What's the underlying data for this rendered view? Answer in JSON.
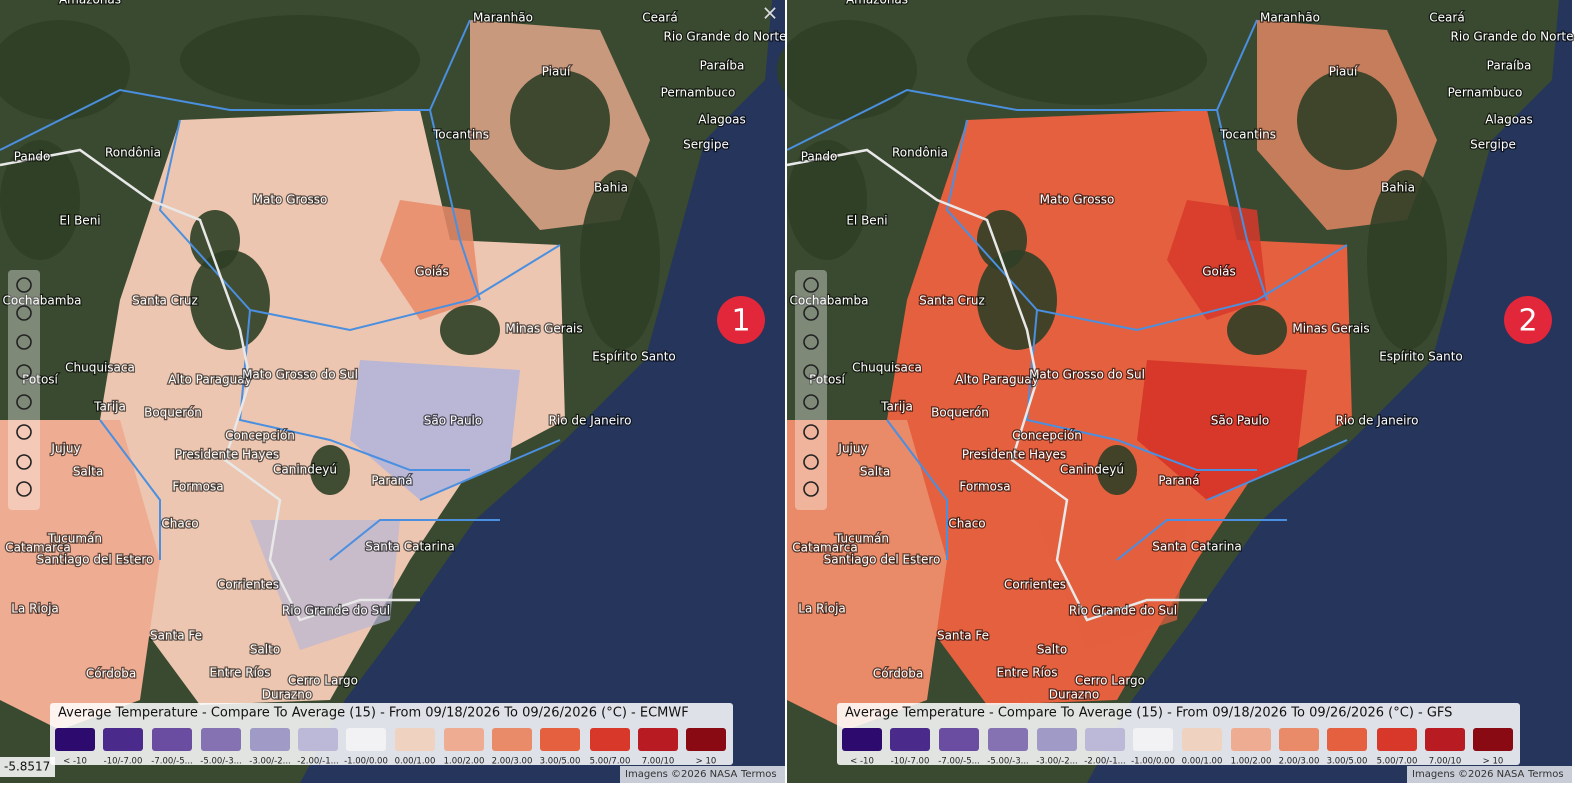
{
  "panels": [
    {
      "badge": "1",
      "legend_title": "Average Temperature - Compare To Average (15) - From 09/18/2026 To 09/26/2026 (°C) - ECMWF",
      "attribution": "Imagens ©2026 NASA",
      "terms": "Termos"
    },
    {
      "badge": "2",
      "legend_title": "Average Temperature - Compare To Average (15) - From 09/18/2026 To 09/26/2026 (°C) - GFS",
      "attribution": "Imagens ©2026 NASA",
      "terms": "Termos"
    }
  ],
  "legend_items": [
    {
      "label": "< -10",
      "color": "#2c0a6e"
    },
    {
      "label": "-10/-7.00",
      "color": "#4a2a8a"
    },
    {
      "label": "-7.00/-5...",
      "color": "#6a4ca0"
    },
    {
      "label": "-5.00/-3...",
      "color": "#8472b2"
    },
    {
      "label": "-3.00/-2...",
      "color": "#a09ac6"
    },
    {
      "label": "-2.00/-1...",
      "color": "#bbb8d8"
    },
    {
      "label": "-1.00/0.00",
      "color": "#f2f2f4"
    },
    {
      "label": "0.00/1.00",
      "color": "#f0d2c0"
    },
    {
      "label": "1.00/2.00",
      "color": "#eeac92"
    },
    {
      "label": "2.00/3.00",
      "color": "#e98a68"
    },
    {
      "label": "3.00/5.00",
      "color": "#e4603f"
    },
    {
      "label": "5.00/7.00",
      "color": "#d8382a"
    },
    {
      "label": "7.00/10",
      "color": "#b81c22"
    },
    {
      "label": "> 10",
      "color": "#8a0a14"
    }
  ],
  "places": [
    "Amazonas",
    "Maranhão",
    "Ceará",
    "Rio Grande do Norte",
    "Piauí",
    "Paraíba",
    "Pernambuco",
    "Alagoas",
    "Tocantins",
    "Rondônia",
    "Pando",
    "Sergipe",
    "Bahia",
    "Mato Grosso",
    "El Beni",
    "Goiás",
    "Cochabamba",
    "Santa Cruz",
    "Minas Gerais",
    "Espírito Santo",
    "Chuquisaca",
    "Alto Paraguay",
    "Mato Grosso do Sul",
    "Potosí",
    "Tarija",
    "Boquerón",
    "São Paulo",
    "Rio de Janeiro",
    "Concepción",
    "Jujuy",
    "Presidente Hayes",
    "Salta",
    "Canindeyú",
    "Formosa",
    "Paraná",
    "Chaco",
    "Tucumán",
    "Santa Catarina",
    "Catamarca",
    "Santiago del Estero",
    "Corrientes",
    "La Rioja",
    "Rio Grande do Sul",
    "Santa Fe",
    "Salto",
    "Córdoba",
    "Entre Ríos",
    "Durazno",
    "Cerro Largo"
  ],
  "coordinates": "-5.8517",
  "close": "×"
}
